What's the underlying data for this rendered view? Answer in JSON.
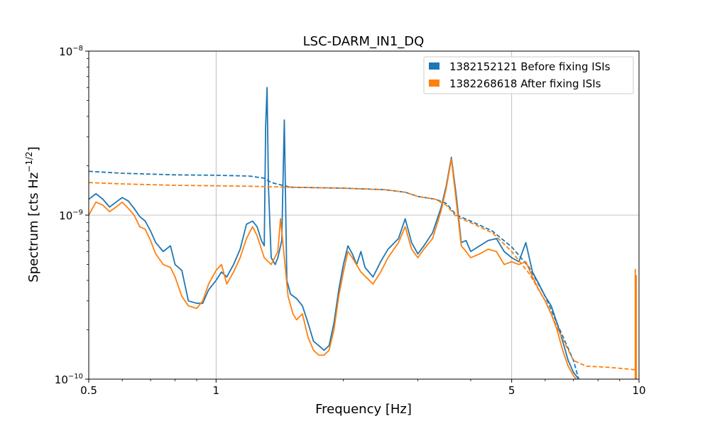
{
  "chart_data": {
    "type": "line",
    "title": "LSC-DARM_IN1_DQ",
    "xlabel": "Frequency [Hz]",
    "ylabel_prefix": "Spectrum [cts Hz",
    "ylabel_exp": "−1/2",
    "ylabel_suffix": "]",
    "xscale": "log",
    "yscale": "log",
    "xlim": [
      0.5,
      10
    ],
    "ylim": [
      1e-10,
      1e-08
    ],
    "grid": true,
    "legend_position": "top-right",
    "x_ticks": [
      {
        "value": 0.5,
        "label": "0.5"
      },
      {
        "value": 1,
        "label": "1"
      },
      {
        "value": 5,
        "label": "5"
      },
      {
        "value": 10,
        "label": "10"
      }
    ],
    "y_ticks": [
      {
        "value": 1e-10,
        "base": "10",
        "exp": "−10"
      },
      {
        "value": 1e-09,
        "base": "10",
        "exp": "−9"
      },
      {
        "value": 1e-08,
        "base": "10",
        "exp": "−8"
      }
    ],
    "series": [
      {
        "name": "1382152121 Before fixing ISIs",
        "color": "#1f77b4",
        "solid": [
          [
            0.5,
            1.25e-09
          ],
          [
            0.52,
            1.35e-09
          ],
          [
            0.54,
            1.25e-09
          ],
          [
            0.56,
            1.12e-09
          ],
          [
            0.58,
            1.2e-09
          ],
          [
            0.6,
            1.28e-09
          ],
          [
            0.62,
            1.22e-09
          ],
          [
            0.64,
            1.1e-09
          ],
          [
            0.66,
            9.8e-10
          ],
          [
            0.68,
            9.2e-10
          ],
          [
            0.7,
            8e-10
          ],
          [
            0.72,
            6.8e-10
          ],
          [
            0.75,
            6e-10
          ],
          [
            0.78,
            6.5e-10
          ],
          [
            0.8,
            5e-10
          ],
          [
            0.83,
            4.6e-10
          ],
          [
            0.86,
            3e-10
          ],
          [
            0.9,
            2.9e-10
          ],
          [
            0.93,
            2.9e-10
          ],
          [
            0.96,
            3.5e-10
          ],
          [
            1.0,
            4e-10
          ],
          [
            1.03,
            4.5e-10
          ],
          [
            1.06,
            4.2e-10
          ],
          [
            1.1,
            5e-10
          ],
          [
            1.14,
            6.2e-10
          ],
          [
            1.18,
            8.8e-10
          ],
          [
            1.22,
            9.2e-10
          ],
          [
            1.25,
            8.5e-10
          ],
          [
            1.28,
            7e-10
          ],
          [
            1.3,
            6.5e-10
          ],
          [
            1.31,
            3.5e-09
          ],
          [
            1.32,
            6e-09
          ],
          [
            1.33,
            1.5e-09
          ],
          [
            1.35,
            5.5e-10
          ],
          [
            1.38,
            5e-10
          ],
          [
            1.4,
            5.5e-10
          ],
          [
            1.43,
            7e-10
          ],
          [
            1.45,
            3.8e-09
          ],
          [
            1.47,
            4e-10
          ],
          [
            1.5,
            3.3e-10
          ],
          [
            1.55,
            3.1e-10
          ],
          [
            1.6,
            2.8e-10
          ],
          [
            1.65,
            2.2e-10
          ],
          [
            1.7,
            1.7e-10
          ],
          [
            1.75,
            1.6e-10
          ],
          [
            1.8,
            1.5e-10
          ],
          [
            1.85,
            1.6e-10
          ],
          [
            1.9,
            2.2e-10
          ],
          [
            1.95,
            3.5e-10
          ],
          [
            2.0,
            5e-10
          ],
          [
            2.05,
            6.5e-10
          ],
          [
            2.1,
            5.8e-10
          ],
          [
            2.15,
            5e-10
          ],
          [
            2.2,
            6e-10
          ],
          [
            2.25,
            4.8e-10
          ],
          [
            2.35,
            4.2e-10
          ],
          [
            2.45,
            5.2e-10
          ],
          [
            2.55,
            6.2e-10
          ],
          [
            2.7,
            7.2e-10
          ],
          [
            2.8,
            9.5e-10
          ],
          [
            2.9,
            6.8e-10
          ],
          [
            3.0,
            5.8e-10
          ],
          [
            3.1,
            6.5e-10
          ],
          [
            3.25,
            7.8e-10
          ],
          [
            3.4,
            1.1e-09
          ],
          [
            3.5,
            1.5e-09
          ],
          [
            3.6,
            2.25e-09
          ],
          [
            3.7,
            1.3e-09
          ],
          [
            3.8,
            6.8e-10
          ],
          [
            3.9,
            7e-10
          ],
          [
            4.0,
            6e-10
          ],
          [
            4.2,
            6.5e-10
          ],
          [
            4.4,
            7e-10
          ],
          [
            4.6,
            7.2e-10
          ],
          [
            4.8,
            6e-10
          ],
          [
            5.0,
            5.5e-10
          ],
          [
            5.2,
            5.2e-10
          ],
          [
            5.4,
            6.8e-10
          ],
          [
            5.6,
            4.5e-10
          ],
          [
            5.8,
            3.8e-10
          ],
          [
            6.0,
            3.2e-10
          ],
          [
            6.2,
            2.8e-10
          ],
          [
            6.4,
            2.2e-10
          ],
          [
            6.6,
            1.7e-10
          ],
          [
            6.8,
            1.3e-10
          ],
          [
            7.0,
            1.1e-10
          ],
          [
            7.2,
            1e-10
          ]
        ],
        "dashed": [
          [
            0.5,
            1.85e-09
          ],
          [
            0.6,
            1.8e-09
          ],
          [
            0.8,
            1.76e-09
          ],
          [
            1.0,
            1.75e-09
          ],
          [
            1.2,
            1.73e-09
          ],
          [
            1.3,
            1.68e-09
          ],
          [
            1.35,
            1.58e-09
          ],
          [
            1.5,
            1.48e-09
          ],
          [
            2.0,
            1.46e-09
          ],
          [
            2.5,
            1.43e-09
          ],
          [
            2.8,
            1.38e-09
          ],
          [
            3.0,
            1.3e-09
          ],
          [
            3.3,
            1.25e-09
          ],
          [
            3.5,
            1.18e-09
          ],
          [
            3.7,
            1e-09
          ],
          [
            4.0,
            9.2e-10
          ],
          [
            4.5,
            8e-10
          ],
          [
            5.0,
            6.4e-10
          ],
          [
            5.5,
            4.8e-10
          ],
          [
            6.0,
            3.2e-10
          ],
          [
            6.5,
            2e-10
          ],
          [
            7.0,
            1.3e-10
          ],
          [
            7.2,
            1e-10
          ]
        ]
      },
      {
        "name": "1382268618 After fixing ISIs",
        "color": "#ff7f0e",
        "solid": [
          [
            0.5,
            1e-09
          ],
          [
            0.52,
            1.2e-09
          ],
          [
            0.54,
            1.15e-09
          ],
          [
            0.56,
            1.05e-09
          ],
          [
            0.58,
            1.12e-09
          ],
          [
            0.6,
            1.2e-09
          ],
          [
            0.62,
            1.1e-09
          ],
          [
            0.64,
            1e-09
          ],
          [
            0.66,
            8.5e-10
          ],
          [
            0.68,
            8.2e-10
          ],
          [
            0.7,
            7e-10
          ],
          [
            0.72,
            5.8e-10
          ],
          [
            0.75,
            5e-10
          ],
          [
            0.78,
            4.8e-10
          ],
          [
            0.8,
            4.2e-10
          ],
          [
            0.83,
            3.2e-10
          ],
          [
            0.86,
            2.8e-10
          ],
          [
            0.9,
            2.7e-10
          ],
          [
            0.93,
            3e-10
          ],
          [
            0.96,
            3.8e-10
          ],
          [
            1.0,
            4.6e-10
          ],
          [
            1.03,
            5e-10
          ],
          [
            1.06,
            3.8e-10
          ],
          [
            1.1,
            4.5e-10
          ],
          [
            1.14,
            5.5e-10
          ],
          [
            1.18,
            7.2e-10
          ],
          [
            1.22,
            8.5e-10
          ],
          [
            1.25,
            7.5e-10
          ],
          [
            1.3,
            5.5e-10
          ],
          [
            1.35,
            5e-10
          ],
          [
            1.4,
            6e-10
          ],
          [
            1.42,
            9.5e-10
          ],
          [
            1.45,
            5.5e-10
          ],
          [
            1.48,
            3.2e-10
          ],
          [
            1.52,
            2.5e-10
          ],
          [
            1.55,
            2.3e-10
          ],
          [
            1.6,
            2.5e-10
          ],
          [
            1.65,
            1.8e-10
          ],
          [
            1.7,
            1.5e-10
          ],
          [
            1.75,
            1.4e-10
          ],
          [
            1.8,
            1.4e-10
          ],
          [
            1.85,
            1.5e-10
          ],
          [
            1.9,
            2e-10
          ],
          [
            1.95,
            3.2e-10
          ],
          [
            2.0,
            4.5e-10
          ],
          [
            2.05,
            6e-10
          ],
          [
            2.1,
            5.5e-10
          ],
          [
            2.2,
            4.5e-10
          ],
          [
            2.35,
            3.8e-10
          ],
          [
            2.45,
            4.5e-10
          ],
          [
            2.55,
            5.5e-10
          ],
          [
            2.7,
            6.8e-10
          ],
          [
            2.8,
            8.5e-10
          ],
          [
            2.9,
            6.2e-10
          ],
          [
            3.0,
            5.5e-10
          ],
          [
            3.1,
            6.2e-10
          ],
          [
            3.25,
            7.2e-10
          ],
          [
            3.4,
            1.05e-09
          ],
          [
            3.5,
            1.45e-09
          ],
          [
            3.6,
            2.2e-09
          ],
          [
            3.7,
            1.2e-09
          ],
          [
            3.8,
            6.5e-10
          ],
          [
            3.9,
            6e-10
          ],
          [
            4.0,
            5.5e-10
          ],
          [
            4.2,
            5.8e-10
          ],
          [
            4.4,
            6.2e-10
          ],
          [
            4.6,
            6e-10
          ],
          [
            4.8,
            5e-10
          ],
          [
            5.0,
            5.2e-10
          ],
          [
            5.2,
            5e-10
          ],
          [
            5.4,
            5.2e-10
          ],
          [
            5.6,
            4.2e-10
          ],
          [
            5.8,
            3.5e-10
          ],
          [
            6.0,
            3e-10
          ],
          [
            6.2,
            2.5e-10
          ],
          [
            6.4,
            2e-10
          ],
          [
            6.6,
            1.5e-10
          ],
          [
            6.8,
            1.2e-10
          ],
          [
            7.0,
            1.05e-10
          ],
          [
            7.1,
            1e-10
          ]
        ],
        "dashed": [
          [
            0.5,
            1.58e-09
          ],
          [
            0.6,
            1.55e-09
          ],
          [
            0.8,
            1.52e-09
          ],
          [
            1.0,
            1.51e-09
          ],
          [
            1.2,
            1.5e-09
          ],
          [
            1.5,
            1.48e-09
          ],
          [
            2.0,
            1.46e-09
          ],
          [
            2.5,
            1.43e-09
          ],
          [
            2.8,
            1.38e-09
          ],
          [
            3.0,
            1.3e-09
          ],
          [
            3.3,
            1.25e-09
          ],
          [
            3.5,
            1.15e-09
          ],
          [
            3.7,
            9.8e-10
          ],
          [
            4.0,
            9e-10
          ],
          [
            4.5,
            7.8e-10
          ],
          [
            5.0,
            6e-10
          ],
          [
            5.5,
            4.4e-10
          ],
          [
            6.0,
            3e-10
          ],
          [
            6.5,
            1.9e-10
          ],
          [
            7.0,
            1.3e-10
          ],
          [
            7.5,
            1.2e-10
          ],
          [
            8.5,
            1.18e-10
          ],
          [
            9.5,
            1.15e-10
          ],
          [
            9.8,
            1.14e-10
          ]
        ],
        "spikes": [
          [
            9.8,
            4.7e-10
          ],
          [
            9.85,
            4.3e-10
          ]
        ]
      }
    ]
  }
}
